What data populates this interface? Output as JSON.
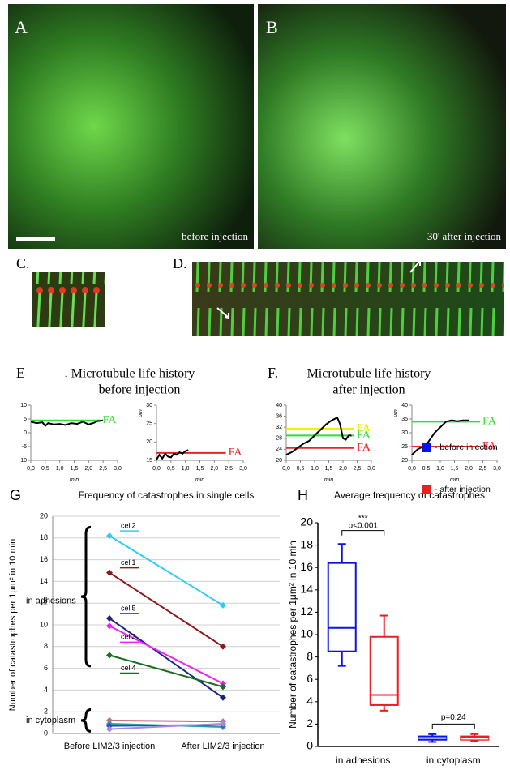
{
  "panels": {
    "A": {
      "label": "A",
      "caption": "before injection"
    },
    "B": {
      "label": "B",
      "caption": "30' after injection"
    },
    "C": {
      "label": "C."
    },
    "D": {
      "label": "D."
    },
    "E": {
      "label": "E",
      "title": ". Microtubule life history",
      "subtitle": "before injection"
    },
    "F": {
      "label": "F.",
      "title": "Microtubule life history",
      "subtitle": "after injection"
    },
    "G": {
      "label": "G"
    },
    "H": {
      "label": "H"
    }
  },
  "chart_data": [
    {
      "type": "line",
      "xlabel": "min",
      "x": [
        0,
        0.2,
        0.4,
        0.5,
        0.6,
        0.8,
        1.0,
        1.2,
        1.4,
        1.6,
        1.8,
        2.0,
        2.2,
        2.3,
        2.5
      ],
      "values": [
        4,
        3.5,
        3.8,
        2.5,
        3.5,
        3,
        3.2,
        2.8,
        3.5,
        3.2,
        4,
        3,
        3.7,
        4.2,
        4.5
      ],
      "color": "#000000",
      "xlim": [
        0,
        3
      ],
      "xticks": [
        {
          "value": 0,
          "label": "0,0"
        },
        {
          "value": 0.5,
          "label": "0,5"
        },
        {
          "value": 1,
          "label": "1,0"
        },
        {
          "value": 1.5,
          "label": "1,5"
        },
        {
          "value": 2,
          "label": "2,0"
        },
        {
          "value": 2.5,
          "label": "2,5"
        },
        {
          "value": 3,
          "label": "3,0"
        }
      ],
      "ylim": [
        -10,
        10
      ],
      "yticks": [
        -10,
        -5,
        0,
        5,
        10
      ],
      "annotations": [
        {
          "y": 4.5,
          "text": "FA",
          "color": "#33dd33"
        }
      ]
    },
    {
      "type": "line",
      "xlabel": "min",
      "ylabel": "um",
      "x": [
        0,
        0.1,
        0.2,
        0.3,
        0.4,
        0.5,
        0.6,
        0.7,
        0.8,
        0.9,
        1.0,
        1.1
      ],
      "values": [
        15.2,
        16.5,
        15.5,
        16.8,
        16,
        15.8,
        16.8,
        16.5,
        17.2,
        16.8,
        17.5,
        17.8
      ],
      "color": "#000000",
      "xlim": [
        0,
        3
      ],
      "xticks": [
        {
          "value": 0,
          "label": "0,0"
        },
        {
          "value": 0.5,
          "label": "0,5"
        },
        {
          "value": 1,
          "label": "1,0"
        },
        {
          "value": 1.5,
          "label": "1,5"
        },
        {
          "value": 2,
          "label": "2,0"
        },
        {
          "value": 2.5,
          "label": "2,5"
        },
        {
          "value": 3,
          "label": "3,0"
        }
      ],
      "ylim": [
        15,
        30
      ],
      "yticks": [
        15,
        20,
        25,
        30
      ],
      "annotations": [
        {
          "y": 17,
          "text": "FA",
          "color": "#ee2222"
        }
      ]
    },
    {
      "type": "line",
      "xlabel": "min",
      "x": [
        0,
        0.2,
        0.4,
        0.6,
        0.8,
        1.0,
        1.2,
        1.4,
        1.6,
        1.8,
        1.9,
        2.0,
        2.1,
        2.2,
        2.3
      ],
      "values": [
        22,
        23,
        24.5,
        26,
        27,
        29,
        31,
        33,
        34.5,
        35.5,
        33,
        28,
        27.5,
        29,
        29
      ],
      "color": "#000000",
      "xlim": [
        0,
        3
      ],
      "xticks": [
        {
          "value": 0,
          "label": "0,0"
        },
        {
          "value": 0.5,
          "label": "0,5"
        },
        {
          "value": 1,
          "label": "1,0"
        },
        {
          "value": 1.5,
          "label": "1,5"
        },
        {
          "value": 2,
          "label": "2,0"
        },
        {
          "value": 2.5,
          "label": "2,5"
        },
        {
          "value": 3,
          "label": "3,0"
        }
      ],
      "ylim": [
        20,
        40
      ],
      "yticks": [
        20,
        24,
        28,
        32,
        36,
        40
      ],
      "annotations": [
        {
          "y": 31.5,
          "text": "FA",
          "color": "#eeee00"
        },
        {
          "y": 29,
          "text": "FA",
          "color": "#33dd33"
        },
        {
          "y": 24.5,
          "text": "FA",
          "color": "#ee2222"
        }
      ]
    },
    {
      "type": "line",
      "xlabel": "min",
      "ylabel": "um",
      "x": [
        0,
        0.2,
        0.4,
        0.5,
        0.6,
        0.8,
        1.0,
        1.2,
        1.4,
        1.6,
        1.8,
        2.0
      ],
      "values": [
        22,
        24,
        25,
        25.5,
        27,
        30,
        32,
        34,
        34.5,
        34.2,
        34.5,
        34.5
      ],
      "color": "#000000",
      "xlim": [
        0,
        3
      ],
      "xticks": [
        {
          "value": 0,
          "label": "0,0"
        },
        {
          "value": 0.5,
          "label": "0,5"
        },
        {
          "value": 1,
          "label": "1,0"
        },
        {
          "value": 1.5,
          "label": "1,5"
        },
        {
          "value": 2,
          "label": "2,0"
        },
        {
          "value": 2.5,
          "label": "2,5"
        },
        {
          "value": 3,
          "label": "3,0"
        }
      ],
      "ylim": [
        20,
        40
      ],
      "yticks": [
        20,
        25,
        30,
        35,
        40
      ],
      "annotations": [
        {
          "y": 34,
          "text": "FA",
          "color": "#33dd33"
        },
        {
          "y": 25,
          "text": "FA",
          "color": "#ee2222"
        }
      ]
    },
    {
      "type": "slope",
      "title": "Frequency of catastrophes in single cells",
      "ylabel": "Number of catastrophes per 1μm² in 10 min",
      "categories": [
        "Before LIM2/3 injection",
        "After LIM2/3 injection"
      ],
      "series": [
        {
          "name": "cell2",
          "color": "#33ccee",
          "values": [
            18.2,
            11.8
          ]
        },
        {
          "name": "cell1",
          "color": "#8b1a1a",
          "values": [
            14.8,
            8.0
          ]
        },
        {
          "name": "cell5",
          "color": "#1a237e",
          "values": [
            10.6,
            3.3
          ]
        },
        {
          "name": "cell3",
          "color": "#ee22ee",
          "values": [
            9.9,
            4.6
          ]
        },
        {
          "name": "cell4",
          "color": "#1b6e20",
          "values": [
            7.2,
            4.3
          ]
        },
        {
          "color": "#c07080",
          "values": [
            1.2,
            1.1
          ]
        },
        {
          "color": "#20a0a0",
          "values": [
            0.9,
            0.6
          ]
        },
        {
          "color": "#3344cc",
          "values": [
            0.7,
            0.8
          ]
        },
        {
          "color": "#aa88dd",
          "values": [
            0.4,
            0.9
          ]
        }
      ],
      "ylim": [
        0,
        20
      ],
      "yticks": [
        0,
        2,
        4,
        6,
        8,
        10,
        12,
        14,
        16,
        18,
        20
      ],
      "grid": true,
      "annotations": [
        {
          "text": "in adhesions"
        },
        {
          "text": "in cytoplasm"
        }
      ]
    },
    {
      "type": "box",
      "title": "Average frequency of catastrophes",
      "ylabel": "Number of catastrophes per 1μm² in 10 min",
      "categories": [
        "in adhesions",
        "in cytoplasm"
      ],
      "series": [
        {
          "name": "- before injection",
          "color": "#0a14e6",
          "values": [
            [
              7.2,
              8.5,
              10.6,
              16.4,
              18.1
            ],
            [
              0.4,
              0.6,
              0.75,
              0.9,
              1.1
            ]
          ]
        },
        {
          "name": "- after injection",
          "color": "#ee1c24",
          "values": [
            [
              3.2,
              3.7,
              4.6,
              9.8,
              11.7
            ],
            [
              0.5,
              0.6,
              0.7,
              0.9,
              1.1
            ]
          ]
        }
      ],
      "ylim": [
        0,
        20
      ],
      "yticks": [
        0,
        2,
        4,
        6,
        8,
        10,
        12,
        14,
        16,
        18,
        20
      ],
      "annotations": [
        {
          "text": "***"
        },
        {
          "text": "p<0.001"
        },
        {
          "text": "p=0.24"
        }
      ]
    }
  ]
}
